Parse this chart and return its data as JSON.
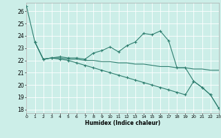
{
  "xlabel": "Humidex (Indice chaleur)",
  "xlim": [
    0,
    23
  ],
  "ylim": [
    17.7,
    26.7
  ],
  "yticks": [
    18,
    19,
    20,
    21,
    22,
    23,
    24,
    25,
    26
  ],
  "xticks": [
    0,
    1,
    2,
    3,
    4,
    5,
    6,
    7,
    8,
    9,
    10,
    11,
    12,
    13,
    14,
    15,
    16,
    17,
    18,
    19,
    20,
    21,
    22,
    23
  ],
  "background_color": "#cceee8",
  "grid_color": "#ffffff",
  "line_color": "#2d7d6e",
  "line1_x": [
    0,
    1,
    2,
    3,
    4,
    5,
    6,
    7,
    8,
    9,
    10,
    11,
    12,
    13,
    14,
    15,
    16,
    17,
    18,
    19,
    20,
    21,
    22,
    23
  ],
  "line1_y": [
    26.4,
    23.5,
    22.1,
    22.2,
    22.3,
    22.2,
    22.2,
    22.1,
    22.6,
    22.8,
    23.1,
    22.7,
    23.2,
    23.5,
    24.2,
    24.1,
    24.4,
    23.6,
    21.4,
    21.4,
    20.3,
    19.8,
    19.2,
    18.1
  ],
  "line2_x": [
    1,
    2,
    3,
    4,
    5,
    6,
    7,
    8,
    9,
    10,
    11,
    12,
    13,
    14,
    15,
    16,
    17,
    18,
    19,
    20,
    21,
    22,
    23
  ],
  "line2_y": [
    23.5,
    22.1,
    22.2,
    22.2,
    22.1,
    22.1,
    22.0,
    22.0,
    21.9,
    21.9,
    21.8,
    21.8,
    21.7,
    21.7,
    21.6,
    21.5,
    21.5,
    21.4,
    21.4,
    21.3,
    21.3,
    21.2,
    21.2
  ],
  "line3_x": [
    1,
    2,
    3,
    4,
    5,
    6,
    7,
    8,
    9,
    10,
    11,
    12,
    13,
    14,
    15,
    16,
    17,
    18,
    19,
    20,
    21,
    22,
    23
  ],
  "line3_y": [
    23.5,
    22.1,
    22.2,
    22.1,
    22.0,
    21.8,
    21.6,
    21.4,
    21.2,
    21.0,
    20.8,
    20.6,
    20.4,
    20.2,
    20.0,
    19.8,
    19.6,
    19.4,
    19.2,
    20.3,
    19.8,
    19.2,
    18.1
  ]
}
